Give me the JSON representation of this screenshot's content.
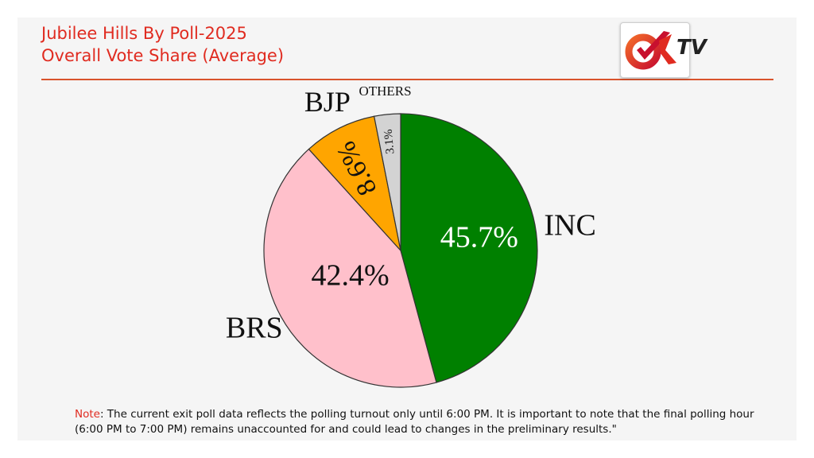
{
  "header": {
    "title_line1": "Jubilee Hills By Poll-2025",
    "title_line2": "Overall Vote Share (Average)"
  },
  "logo": {
    "text": "TV",
    "mark": "ok-check-logo"
  },
  "chart_data": {
    "type": "pie",
    "title": "Jubilee Hills By Poll-2025 Overall Vote Share (Average)",
    "slices": [
      {
        "label": "INC",
        "value": 45.7,
        "value_label": "45.7%",
        "color": "#008000"
      },
      {
        "label": "BRS",
        "value": 42.4,
        "value_label": "42.4%",
        "color": "#ffc0cb"
      },
      {
        "label": "BJP",
        "value": 8.6,
        "value_label": "8.6%",
        "color": "#ffa500"
      },
      {
        "label": "OTHERS",
        "value": 3.1,
        "value_label": "3.1%",
        "color": "#d3d3d3"
      }
    ],
    "start": "top",
    "direction": "clockwise",
    "legend": "none"
  },
  "note": {
    "label": "Note",
    "text": ": The current exit poll data reflects the polling turnout only until 6:00 PM. It is important to note that the final polling hour (6:00 PM to 7:00 PM) remains unaccounted for and could lead to changes in the preliminary results.\""
  }
}
